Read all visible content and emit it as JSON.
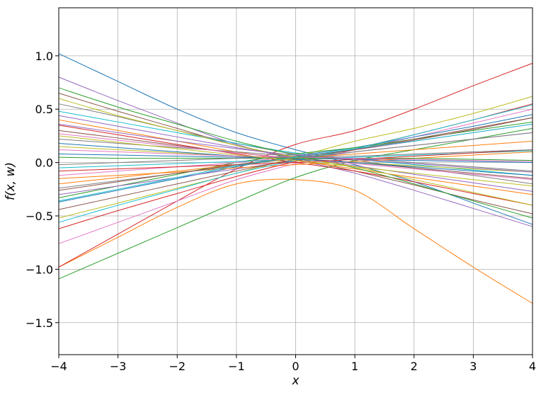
{
  "chart_data": {
    "type": "line",
    "title": "",
    "xlabel": "x",
    "ylabel": "f(x, w)",
    "xlim": [
      -4,
      4
    ],
    "ylim": [
      -1.8,
      1.45
    ],
    "grid": true,
    "legend": "none",
    "x_ticks": [
      -4,
      -3,
      -2,
      -1,
      0,
      1,
      2,
      3,
      4
    ],
    "x_tick_labels": [
      "−4",
      "−3",
      "−2",
      "−1",
      "0",
      "1",
      "2",
      "3",
      "4"
    ],
    "y_ticks": [
      1.0,
      0.5,
      0.0,
      -0.5,
      -1.0,
      -1.5
    ],
    "y_tick_labels": [
      "1.0",
      "0.5",
      "0.0",
      "−0.5",
      "−1.0",
      "−1.5"
    ],
    "x": [
      -4,
      -3,
      -2,
      -1,
      0,
      1,
      2,
      3,
      4
    ],
    "colors": [
      "#1f77b4",
      "#ff7f0e",
      "#2ca02c",
      "#d62728",
      "#9467bd",
      "#8c564b",
      "#e377c2",
      "#7f7f7f",
      "#bcbd22",
      "#17becf"
    ],
    "series": [
      {
        "values": [
          1.02,
          0.76,
          0.5,
          0.28,
          0.12,
          -0.02,
          -0.18,
          -0.38,
          -0.58
        ]
      },
      {
        "values": [
          -0.98,
          -0.7,
          -0.42,
          -0.2,
          -0.16,
          -0.26,
          -0.62,
          -0.98,
          -1.32
        ]
      },
      {
        "values": [
          -1.09,
          -0.85,
          -0.61,
          -0.37,
          -0.14,
          0.02,
          0.12,
          0.22,
          0.32
        ]
      },
      {
        "values": [
          -0.98,
          -0.67,
          -0.36,
          -0.06,
          0.17,
          0.3,
          0.5,
          0.72,
          0.93
        ]
      },
      {
        "values": [
          0.8,
          0.58,
          0.37,
          0.17,
          0.03,
          -0.1,
          -0.26,
          -0.43,
          -0.6
        ]
      },
      {
        "values": [
          0.65,
          0.48,
          0.32,
          0.16,
          0.04,
          -0.08,
          -0.21,
          -0.35,
          -0.48
        ]
      },
      {
        "values": [
          -0.76,
          -0.56,
          -0.36,
          -0.16,
          -0.01,
          0.12,
          0.24,
          0.37,
          0.5
        ]
      },
      {
        "values": [
          0.55,
          0.43,
          0.3,
          0.18,
          0.08,
          0.02,
          -0.05,
          -0.12,
          -0.2
        ]
      },
      {
        "values": [
          -0.52,
          -0.38,
          -0.24,
          -0.1,
          0.05,
          0.2,
          0.32,
          0.46,
          0.62
        ]
      },
      {
        "values": [
          0.48,
          0.38,
          0.28,
          0.18,
          0.09,
          0.03,
          -0.02,
          -0.07,
          -0.12
        ]
      },
      {
        "values": [
          -0.37,
          -0.26,
          -0.15,
          -0.04,
          0.06,
          0.14,
          0.24,
          0.34,
          0.45
        ]
      },
      {
        "values": [
          0.4,
          0.3,
          0.2,
          0.1,
          0.02,
          -0.06,
          -0.14,
          -0.22,
          -0.3
        ]
      },
      {
        "values": [
          -0.33,
          -0.22,
          -0.11,
          0.0,
          0.08,
          0.14,
          0.22,
          0.3,
          0.38
        ]
      },
      {
        "values": [
          0.35,
          0.26,
          0.17,
          0.08,
          0.0,
          -0.08,
          -0.18,
          -0.29,
          -0.4
        ]
      },
      {
        "values": [
          -0.3,
          -0.22,
          -0.14,
          -0.06,
          0.02,
          0.1,
          0.16,
          0.22,
          0.28
        ]
      },
      {
        "values": [
          0.3,
          0.23,
          0.16,
          0.09,
          0.04,
          0.0,
          -0.05,
          -0.1,
          -0.15
        ]
      },
      {
        "values": [
          -0.12,
          -0.08,
          -0.04,
          0.0,
          0.06,
          0.12,
          0.2,
          0.28,
          0.36
        ]
      },
      {
        "values": [
          0.22,
          0.18,
          0.14,
          0.1,
          0.06,
          0.04,
          0.0,
          -0.04,
          -0.08
        ]
      },
      {
        "values": [
          0.15,
          0.12,
          0.09,
          0.06,
          0.03,
          0.0,
          -0.03,
          -0.06,
          -0.09
        ]
      },
      {
        "values": [
          -0.05,
          -0.03,
          -0.01,
          0.01,
          0.03,
          0.05,
          0.07,
          0.09,
          0.11
        ]
      },
      {
        "values": [
          0.08,
          0.07,
          0.06,
          0.05,
          0.04,
          0.03,
          0.02,
          0.01,
          0.0
        ]
      },
      {
        "values": [
          -0.15,
          -0.12,
          -0.09,
          -0.05,
          -0.02,
          0.01,
          0.04,
          0.07,
          0.1
        ]
      },
      {
        "values": [
          0.7,
          0.52,
          0.36,
          0.2,
          0.07,
          -0.05,
          -0.2,
          -0.36,
          -0.52
        ]
      },
      {
        "values": [
          -0.62,
          -0.45,
          -0.29,
          -0.13,
          0.01,
          0.13,
          0.26,
          0.4,
          0.55
        ]
      },
      {
        "values": [
          0.44,
          0.34,
          0.24,
          0.14,
          0.05,
          -0.03,
          -0.11,
          -0.19,
          -0.27
        ]
      },
      {
        "values": [
          -0.44,
          -0.32,
          -0.2,
          -0.08,
          0.03,
          0.12,
          0.22,
          0.32,
          0.42
        ]
      },
      {
        "values": [
          0.27,
          0.21,
          0.15,
          0.09,
          0.04,
          -0.01,
          -0.06,
          -0.11,
          -0.16
        ]
      },
      {
        "values": [
          -0.24,
          -0.17,
          -0.1,
          -0.03,
          0.04,
          0.1,
          0.16,
          0.22,
          0.28
        ]
      },
      {
        "values": [
          0.6,
          0.44,
          0.3,
          0.16,
          0.05,
          -0.04,
          -0.16,
          -0.28,
          -0.4
        ]
      },
      {
        "values": [
          -0.56,
          -0.4,
          -0.25,
          -0.1,
          0.02,
          0.13,
          0.26,
          0.4,
          0.54
        ]
      },
      {
        "values": [
          0.18,
          0.14,
          0.1,
          0.06,
          0.03,
          0.0,
          -0.04,
          -0.08,
          -0.12
        ]
      },
      {
        "values": [
          -0.2,
          -0.14,
          -0.08,
          -0.02,
          0.04,
          0.08,
          0.12,
          0.16,
          0.2
        ]
      },
      {
        "values": [
          0.05,
          0.04,
          0.04,
          0.04,
          0.04,
          0.04,
          0.04,
          0.03,
          0.02
        ]
      },
      {
        "values": [
          -0.08,
          -0.06,
          -0.04,
          -0.02,
          0.0,
          0.03,
          0.06,
          0.09,
          0.12
        ]
      },
      {
        "values": [
          0.36,
          0.28,
          0.2,
          0.13,
          0.07,
          0.03,
          -0.01,
          -0.05,
          -0.09
        ]
      },
      {
        "values": [
          -0.26,
          -0.18,
          -0.1,
          -0.02,
          0.05,
          0.12,
          0.21,
          0.31,
          0.42
        ]
      },
      {
        "values": [
          0.12,
          0.1,
          0.08,
          0.06,
          0.05,
          0.04,
          0.03,
          0.02,
          0.01
        ]
      },
      {
        "values": [
          -0.02,
          0.0,
          0.02,
          0.04,
          0.05,
          0.06,
          0.08,
          0.1,
          0.12
        ]
      },
      {
        "values": [
          0.25,
          0.19,
          0.13,
          0.07,
          0.02,
          -0.04,
          -0.1,
          -0.16,
          -0.22
        ]
      },
      {
        "values": [
          -0.36,
          -0.25,
          -0.14,
          -0.03,
          0.05,
          0.13,
          0.2,
          0.28,
          0.36
        ]
      }
    ]
  }
}
